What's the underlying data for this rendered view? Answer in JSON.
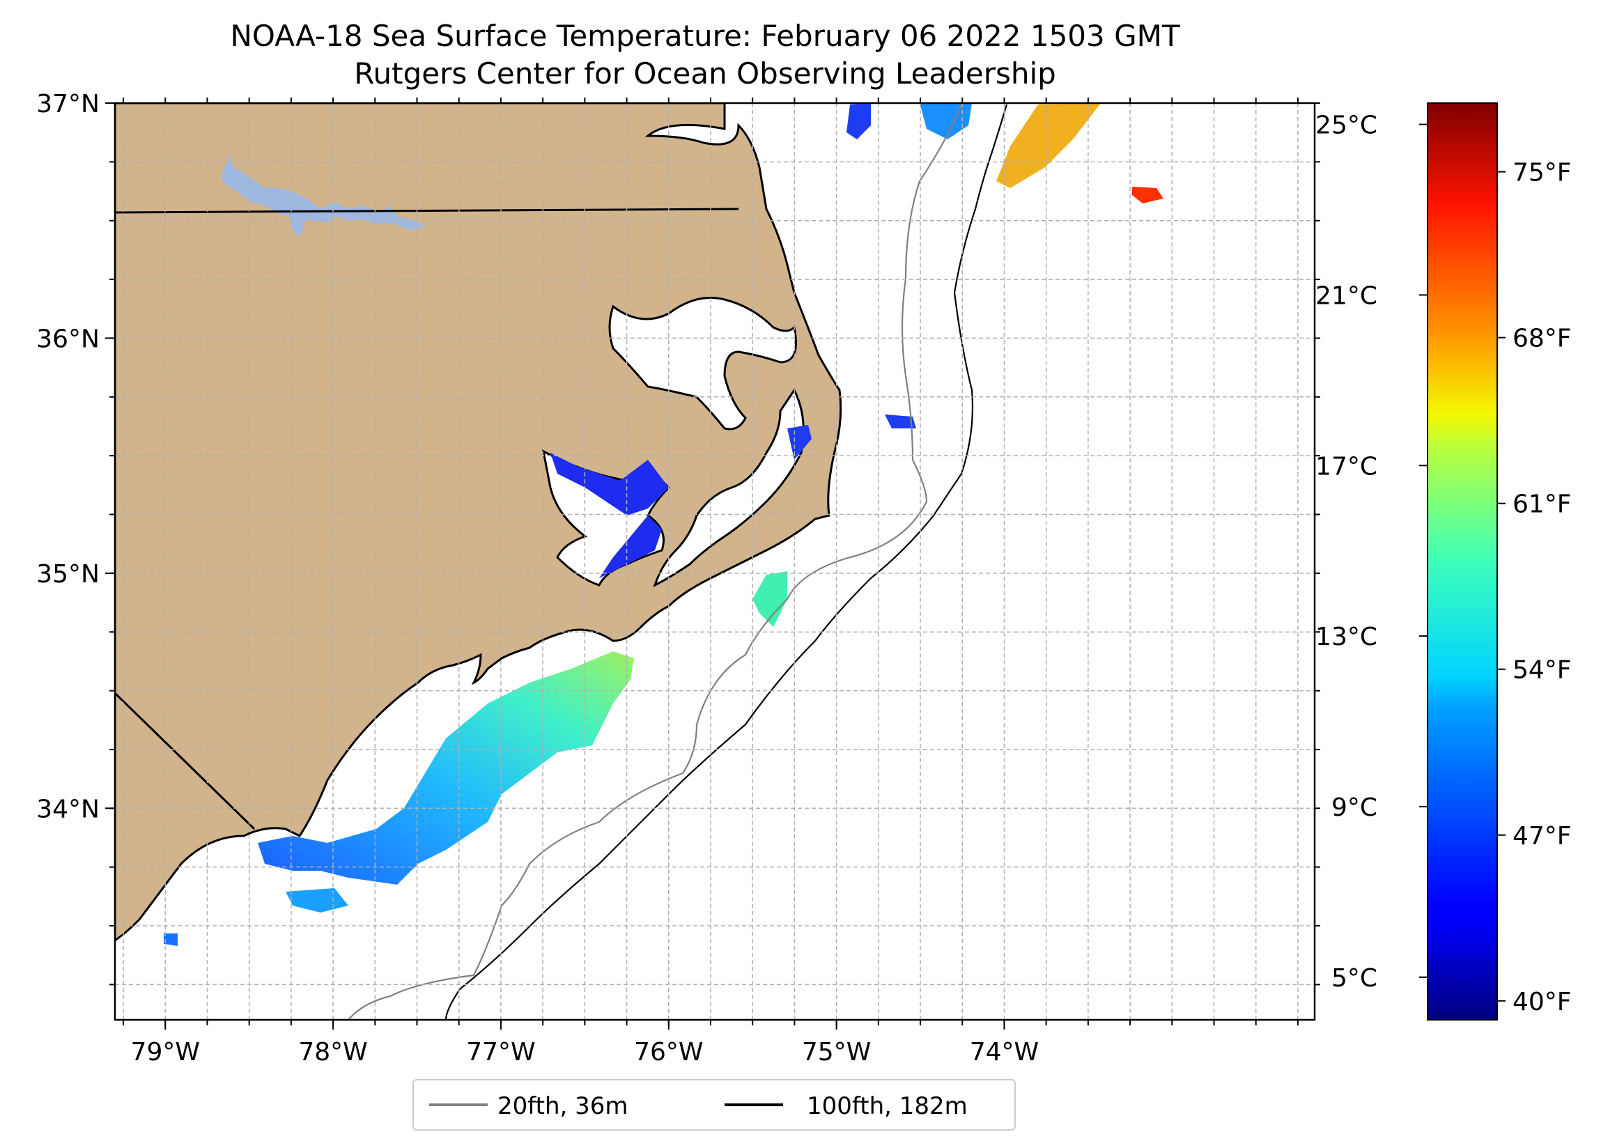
{
  "title": "NOAA-18 Sea Surface Temperature: February 06 2022 1503 GMT",
  "subtitle": "Rutgers Center for Ocean Observing Leadership",
  "map": {
    "lon_range": [
      -79.3,
      -72.15
    ],
    "lat_range": [
      33.1,
      37.0
    ],
    "x_ticks": [
      {
        "lon": -79,
        "label": "79°W"
      },
      {
        "lon": -78,
        "label": "78°W"
      },
      {
        "lon": -77,
        "label": "77°W"
      },
      {
        "lon": -76,
        "label": "76°W"
      },
      {
        "lon": -75,
        "label": "75°W"
      },
      {
        "lon": -74,
        "label": "74°W"
      }
    ],
    "y_ticks": [
      {
        "lat": 34,
        "label": "34°N"
      },
      {
        "lat": 35,
        "label": "35°N"
      },
      {
        "lat": 36,
        "label": "36°N"
      },
      {
        "lat": 37,
        "label": "37°N"
      }
    ],
    "grid": true,
    "land_color": "#d2b48c",
    "lake_color": "#9fb8e0",
    "ocean_color": "#ffffff"
  },
  "colorbar": {
    "colormap": "jet",
    "celsius_ticks": [
      {
        "value": 5,
        "label": "5°C"
      },
      {
        "value": 9,
        "label": "9°C"
      },
      {
        "value": 13,
        "label": "13°C"
      },
      {
        "value": 17,
        "label": "17°C"
      },
      {
        "value": 21,
        "label": "21°C"
      },
      {
        "value": 25,
        "label": "25°C"
      }
    ],
    "fahrenheit_ticks": [
      {
        "value": 40,
        "label": "40°F"
      },
      {
        "value": 47,
        "label": "47°F"
      },
      {
        "value": 54,
        "label": "54°F"
      },
      {
        "value": 61,
        "label": "61°F"
      },
      {
        "value": 68,
        "label": "68°F"
      },
      {
        "value": 75,
        "label": "75°F"
      }
    ],
    "range_celsius": [
      4.0,
      25.5
    ]
  },
  "legend": {
    "items": [
      {
        "label": "20fth, 36m",
        "color": "#808080"
      },
      {
        "label": "100fth, 182m",
        "color": "#000000"
      }
    ]
  }
}
